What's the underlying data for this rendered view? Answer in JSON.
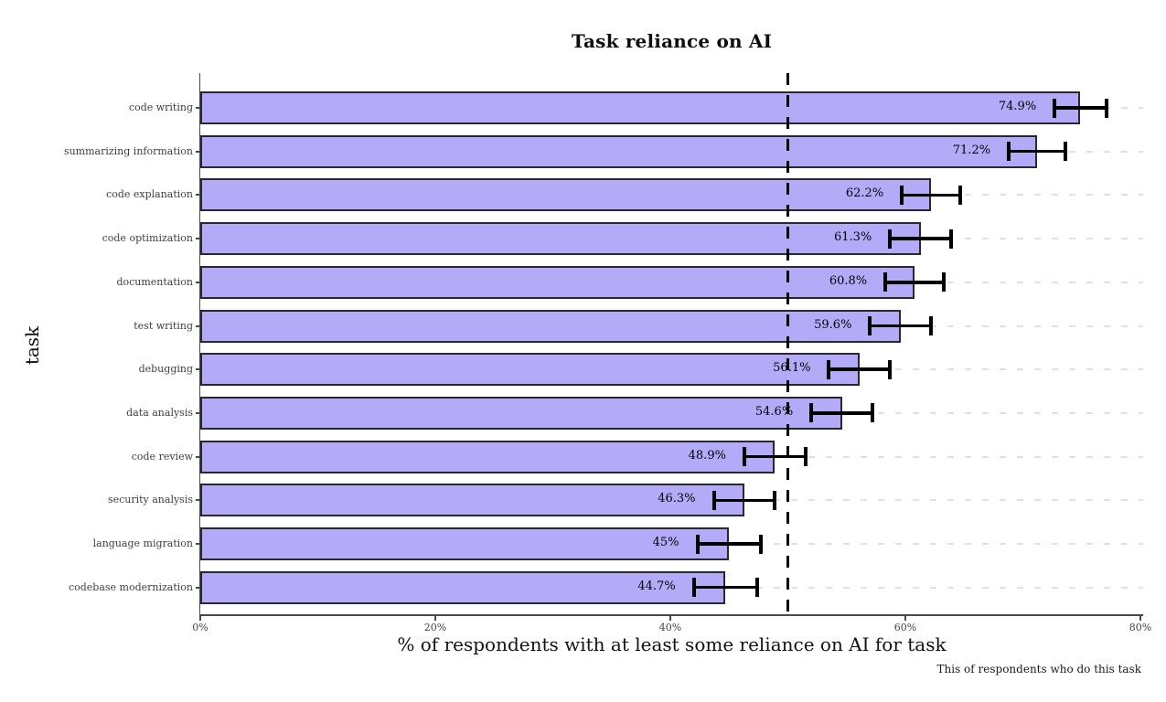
{
  "chart_data": {
    "type": "bar",
    "orientation": "horizontal",
    "title": "Task reliance on AI",
    "xlabel": "% of respondents with at least some reliance on AI for task",
    "ylabel": "task",
    "caption": "This of respondents who do this task",
    "xlim": [
      0,
      80.2
    ],
    "xticks": [
      {
        "value": 0,
        "label": "0%"
      },
      {
        "value": 20,
        "label": "20%"
      },
      {
        "value": 40,
        "label": "40%"
      },
      {
        "value": 60,
        "label": "60%"
      },
      {
        "value": 80,
        "label": "80%"
      }
    ],
    "grid": "horizontal-dashed",
    "legend": "none",
    "reference_line_x": 50,
    "bars": [
      {
        "category": "code writing",
        "value": 74.9,
        "label": "74.9%",
        "error": 2.2
      },
      {
        "category": "summarizing information",
        "value": 71.2,
        "label": "71.2%",
        "error": 2.4
      },
      {
        "category": "code explanation",
        "value": 62.2,
        "label": "62.2%",
        "error": 2.5
      },
      {
        "category": "code optimization",
        "value": 61.3,
        "label": "61.3%",
        "error": 2.6
      },
      {
        "category": "documentation",
        "value": 60.8,
        "label": "60.8%",
        "error": 2.5
      },
      {
        "category": "test writing",
        "value": 59.6,
        "label": "59.6%",
        "error": 2.6
      },
      {
        "category": "debugging",
        "value": 56.1,
        "label": "56.1%",
        "error": 2.6
      },
      {
        "category": "data analysis",
        "value": 54.6,
        "label": "54.6%",
        "error": 2.6
      },
      {
        "category": "code review",
        "value": 48.9,
        "label": "48.9%",
        "error": 2.6
      },
      {
        "category": "security analysis",
        "value": 46.3,
        "label": "46.3%",
        "error": 2.6
      },
      {
        "category": "language migration",
        "value": 45,
        "label": "45%",
        "error": 2.7
      },
      {
        "category": "codebase modernization",
        "value": 44.7,
        "label": "44.7%",
        "error": 2.7
      }
    ],
    "colors": {
      "bar_fill": "#b3abf8",
      "bar_border": "#28282e",
      "error_bar": "#000000",
      "reference_line": "#000000",
      "grid_line": "#e1e1e1",
      "axis_line": "#4a4a4a",
      "tick_label": "#444444",
      "category_label": "#404040",
      "background": "#ffffff"
    }
  }
}
